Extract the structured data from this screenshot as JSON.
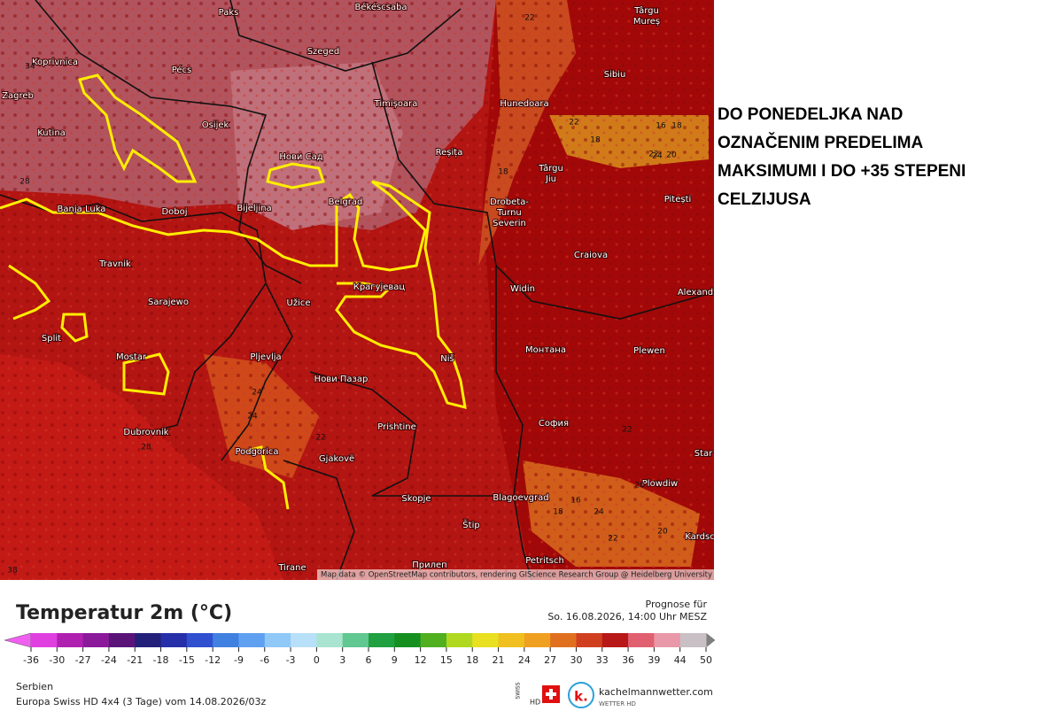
{
  "map": {
    "cities": [
      "Paks",
      "Békéscsaba",
      "Târgu",
      "Mureș",
      "Koprivnica",
      "Pécs",
      "Szeged",
      "Zagreb",
      "Osijek",
      "Timișoara",
      "Hunedoara",
      "Sibiu",
      "Kutina",
      "Нови Сад",
      "Reșița",
      "Târgu",
      "Jiu",
      "Banja Luka",
      "Doboj",
      "Bijeljina",
      "Belgrad",
      "Drobeta-",
      "Turnu",
      "Severin",
      "Pitești",
      "Craiova",
      "Travnik",
      "Крагујевац",
      "Widin",
      "Alexand",
      "Sarajewo",
      "Užice",
      "Split",
      "Pljevlja",
      "Монтана",
      "Plewen",
      "Mostar",
      "Нови Пазар",
      "Niš",
      "Dubrovnik",
      "Prishtine",
      "София",
      "Podgorica",
      "Gjakovë",
      "Plowdiw",
      "Blagoevgrad",
      "Skopje",
      "Štip",
      "Tirane",
      "Прилеп",
      "Petritsch",
      "Kardsc",
      "Star"
    ],
    "temperature_labels": [
      34,
      22,
      22,
      18,
      16,
      18,
      24,
      22,
      20,
      18,
      28,
      24,
      24,
      28,
      22,
      20,
      18,
      16,
      24,
      22,
      20,
      22,
      38
    ],
    "attribution": "Map data © OpenStreetMap contributors, rendering GIScience Research Group @ Heidelberg University"
  },
  "annotation": [
    "DO PONEDELJKA NAD",
    "OZNAČENIM PREDELIMA",
    "MAKSIMUMI I DO +35 STEPENI",
    "CELZIJUSA"
  ],
  "legend": {
    "title": "Temperatur 2m (°C)",
    "ticks": [
      -36,
      -30,
      -27,
      -24,
      -21,
      -18,
      -15,
      -12,
      -9,
      -6,
      -3,
      0,
      3,
      6,
      9,
      12,
      15,
      18,
      21,
      24,
      27,
      30,
      33,
      36,
      39,
      44,
      50
    ],
    "colors": [
      "#e040e0",
      "#b020b0",
      "#8a1a9a",
      "#5a1478",
      "#23207a",
      "#2530a8",
      "#3050d0",
      "#4080e0",
      "#60a0f0",
      "#90c8f8",
      "#b8e0f8",
      "#a8e4d0",
      "#60c890",
      "#20a040",
      "#159020",
      "#50b020",
      "#b0d820",
      "#e8e020",
      "#f0c020",
      "#f0a020",
      "#e07020",
      "#d04020",
      "#b81818",
      "#e06070",
      "#e898a8",
      "#c8c0c4"
    ],
    "low_color": "#f060f0",
    "high_color": "#808080"
  },
  "forecast": {
    "label": "Prognose für",
    "time": "So. 16.08.2026, 14:00 Uhr MESZ"
  },
  "footer": {
    "region": "Serbien",
    "model": "Europa Swiss HD 4x4 (3 Tage) vom 14.08.2026/03z",
    "swiss": "SWISS",
    "hd": "HD",
    "brand": "kachelmannwetter.com",
    "brand_sub": "WETTER HD"
  }
}
